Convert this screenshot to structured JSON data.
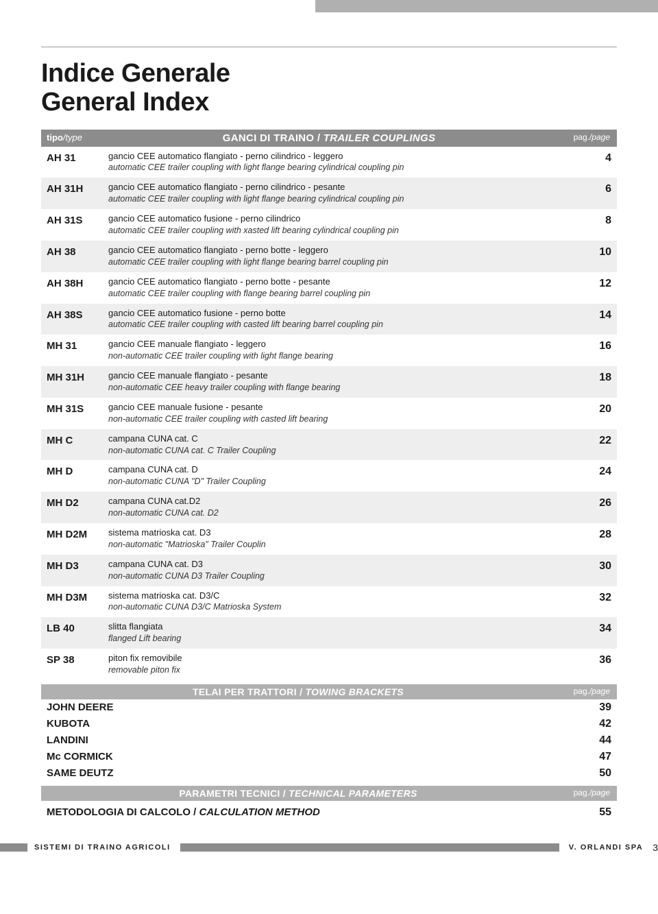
{
  "title_line1": "Indice Generale",
  "title_line2": "General Index",
  "header": {
    "type_label": "tipo",
    "type_label_it": "/type",
    "section1_title": "GANCI DI TRAINO /",
    "section1_title_it": " TRAILER COUPLINGS",
    "page_label": "pag.",
    "page_label_it": "/page"
  },
  "couplings": [
    {
      "type": "AH 31",
      "desc": "gancio CEE automatico flangiato - perno cilindrico  - leggero",
      "sub": "automatic CEE trailer coupling with light flange bearing cylindrical coupling pin",
      "page": "4",
      "shade": false
    },
    {
      "type": "AH 31H",
      "desc": "gancio CEE automatico flangiato - perno cilindrico  - pesante",
      "sub": "automatic CEE trailer coupling with light flange bearing cylindrical coupling pin",
      "page": "6",
      "shade": true
    },
    {
      "type": "AH 31S",
      "desc": "gancio CEE automatico fusione - perno cilindrico",
      "sub": "automatic CEE trailer coupling with xasted lift bearing cylindrical coupling pin",
      "page": "8",
      "shade": false
    },
    {
      "type": "AH 38",
      "desc": "gancio CEE automatico flangiato - perno botte - leggero",
      "sub": "automatic CEE trailer coupling with light flange bearing barrel coupling pin",
      "page": "10",
      "shade": true
    },
    {
      "type": "AH 38H",
      "desc": "gancio CEE automatico flangiato - perno botte - pesante",
      "sub": "automatic CEE trailer coupling with flange bearing barrel coupling pin",
      "page": "12",
      "shade": false
    },
    {
      "type": "AH 38S",
      "desc": "gancio CEE automatico fusione - perno botte",
      "sub": "automatic CEE trailer coupling with casted lift bearing barrel coupling pin",
      "page": "14",
      "shade": true
    },
    {
      "type": "MH 31",
      "desc": "gancio CEE manuale flangiato - leggero",
      "sub": "non-automatic CEE trailer coupling with light flange bearing",
      "page": "16",
      "shade": false
    },
    {
      "type": "MH 31H",
      "desc": "gancio CEE manuale flangiato - pesante",
      "sub": "non-automatic CEE heavy trailer coupling with flange bearing",
      "page": "18",
      "shade": true
    },
    {
      "type": "MH 31S",
      "desc": "gancio CEE manuale fusione - pesante",
      "sub": "non-automatic CEE trailer coupling with casted lift bearing",
      "page": "20",
      "shade": false
    },
    {
      "type": "MH C",
      "desc": "campana CUNA cat. C",
      "sub": "non-automatic CUNA cat. C Trailer Coupling",
      "page": "22",
      "shade": true
    },
    {
      "type": "MH D",
      "desc": "campana CUNA cat. D",
      "sub": "non-automatic CUNA \"D\" Trailer Coupling",
      "page": "24",
      "shade": false
    },
    {
      "type": "MH D2",
      "desc": "campana CUNA cat.D2",
      "sub": "non-automatic CUNA cat. D2",
      "page": "26",
      "shade": true
    },
    {
      "type": "MH D2M",
      "desc": "sistema matrioska cat. D3",
      "sub": "non-automatic \"Matrioska\" Trailer Couplin",
      "page": "28",
      "shade": false
    },
    {
      "type": "MH D3",
      "desc": "campana CUNA cat. D3",
      "sub": "non-automatic CUNA D3 Trailer Coupling",
      "page": "30",
      "shade": true
    },
    {
      "type": "MH D3M",
      "desc": "sistema matrioska cat. D3/C",
      "sub": "non-automatic CUNA D3/C Matrioska System",
      "page": "32",
      "shade": false
    },
    {
      "type": "LB 40",
      "desc": "slitta flangiata",
      "sub": "flanged Lift bearing",
      "page": "34",
      "shade": true
    },
    {
      "type": "SP 38",
      "desc": "piton fix removibile",
      "sub": "removable piton fix",
      "page": "36",
      "shade": false
    }
  ],
  "section2": {
    "title": "TELAI PER TRATTORI /",
    "title_it": " TOWING BRACKETS",
    "page_label": "pag.",
    "page_label_it": "/page"
  },
  "brands": [
    {
      "name": "JOHN DEERE",
      "page": "39"
    },
    {
      "name": "KUBOTA",
      "page": "42"
    },
    {
      "name": "LANDINI",
      "page": "44"
    },
    {
      "name": "Mc CORMICK",
      "page": "47"
    },
    {
      "name": "SAME DEUTZ",
      "page": "50"
    }
  ],
  "section3": {
    "title": "PARAMETRI TECNICI /",
    "title_it": " TECHNICAL PARAMETERS",
    "page_label": "pag.",
    "page_label_it": "/page"
  },
  "method": {
    "label": "METODOLOGIA DI CALCOLO /",
    "label_it": " CALCULATION METHOD",
    "page": "55"
  },
  "footer": {
    "left": "SISTEMI DI TRAINO AGRICOLI",
    "right": "V. ORLANDI SPA",
    "page_num": "3"
  },
  "colors": {
    "header_bg": "#8c8c8c",
    "section_bg": "#b0b0b0",
    "shade_bg": "#eeeeee",
    "text": "#1a1a1a"
  }
}
